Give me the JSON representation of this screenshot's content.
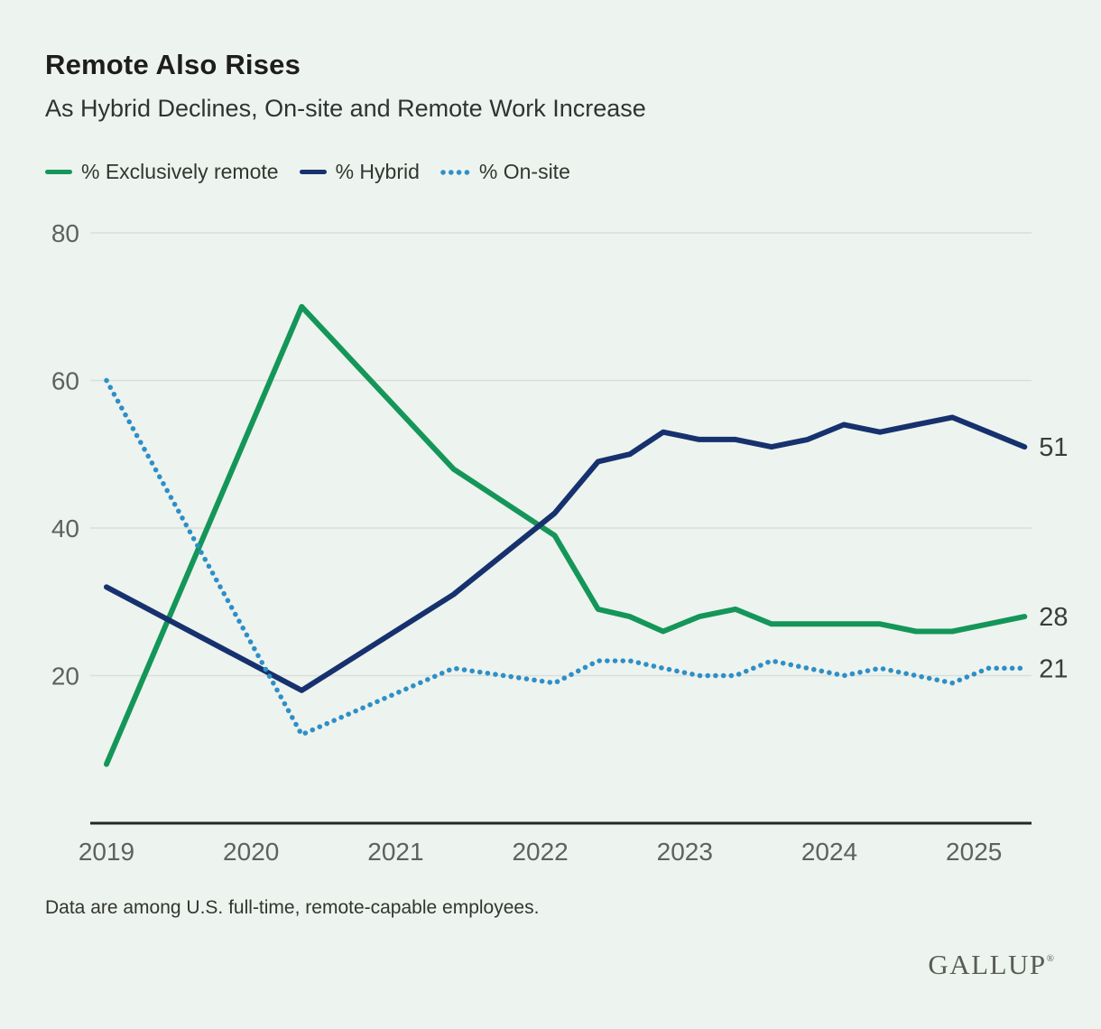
{
  "header": {
    "title": "Remote Also Rises",
    "subtitle": "As Hybrid Declines, On-site and Remote Work Increase"
  },
  "footnote": "Data are among U.S. full-time, remote-capable employees.",
  "brand": "GALLUP",
  "brand_mark": "®",
  "colors": {
    "background": "#edf3ee",
    "grid": "#d9ded9",
    "axis": "#24272a",
    "tick_text": "#5e625e",
    "end_label_text": "#3a3d3a",
    "remote_green": "#149659",
    "hybrid_navy": "#16316e",
    "onsite_blue": "#2e8fc7"
  },
  "chart_data": {
    "type": "line",
    "title": "Remote Also Rises",
    "subtitle": "As Hybrid Declines, On-site and Remote Work Increase",
    "legend_position": "top",
    "x_axis": {
      "ticks": [
        2019,
        2020,
        2021,
        2022,
        2023,
        2024,
        2025
      ],
      "range": [
        2018.9,
        2025.5
      ]
    },
    "y_axis": {
      "ticks": [
        20,
        40,
        60,
        80
      ],
      "range": [
        0,
        80
      ],
      "grid": true
    },
    "series": [
      {
        "id": "remote",
        "name": "% Exclusively remote",
        "color": "#149659",
        "style": "solid",
        "end_label": "28",
        "points": [
          [
            2019,
            8
          ],
          [
            2020.35,
            70
          ],
          [
            2021.4,
            48
          ],
          [
            2022.1,
            39
          ],
          [
            2022.4,
            29
          ],
          [
            2022.62,
            28
          ],
          [
            2022.85,
            26
          ],
          [
            2023.1,
            28
          ],
          [
            2023.35,
            29
          ],
          [
            2023.6,
            27
          ],
          [
            2023.85,
            27
          ],
          [
            2024.1,
            27
          ],
          [
            2024.35,
            27
          ],
          [
            2024.6,
            26
          ],
          [
            2024.85,
            26
          ],
          [
            2025.1,
            27
          ],
          [
            2025.35,
            28
          ]
        ]
      },
      {
        "id": "hybrid",
        "name": "% Hybrid",
        "color": "#16316e",
        "style": "solid",
        "end_label": "51",
        "points": [
          [
            2019,
            32
          ],
          [
            2020.35,
            18
          ],
          [
            2021.4,
            31
          ],
          [
            2022.1,
            42
          ],
          [
            2022.4,
            49
          ],
          [
            2022.62,
            50
          ],
          [
            2022.85,
            53
          ],
          [
            2023.1,
            52
          ],
          [
            2023.35,
            52
          ],
          [
            2023.6,
            51
          ],
          [
            2023.85,
            52
          ],
          [
            2024.1,
            54
          ],
          [
            2024.35,
            53
          ],
          [
            2024.6,
            54
          ],
          [
            2024.85,
            55
          ],
          [
            2025.1,
            53
          ],
          [
            2025.35,
            51
          ]
        ]
      },
      {
        "id": "onsite",
        "name": "% On-site",
        "color": "#2e8fc7",
        "style": "dotted",
        "end_label": "21",
        "points": [
          [
            2019,
            60
          ],
          [
            2020.35,
            12
          ],
          [
            2021.4,
            21
          ],
          [
            2022.1,
            19
          ],
          [
            2022.4,
            22
          ],
          [
            2022.62,
            22
          ],
          [
            2022.85,
            21
          ],
          [
            2023.1,
            20
          ],
          [
            2023.35,
            20
          ],
          [
            2023.6,
            22
          ],
          [
            2023.85,
            21
          ],
          [
            2024.1,
            20
          ],
          [
            2024.35,
            21
          ],
          [
            2024.6,
            20
          ],
          [
            2024.85,
            19
          ],
          [
            2025.1,
            21
          ],
          [
            2025.35,
            21
          ]
        ]
      }
    ]
  }
}
